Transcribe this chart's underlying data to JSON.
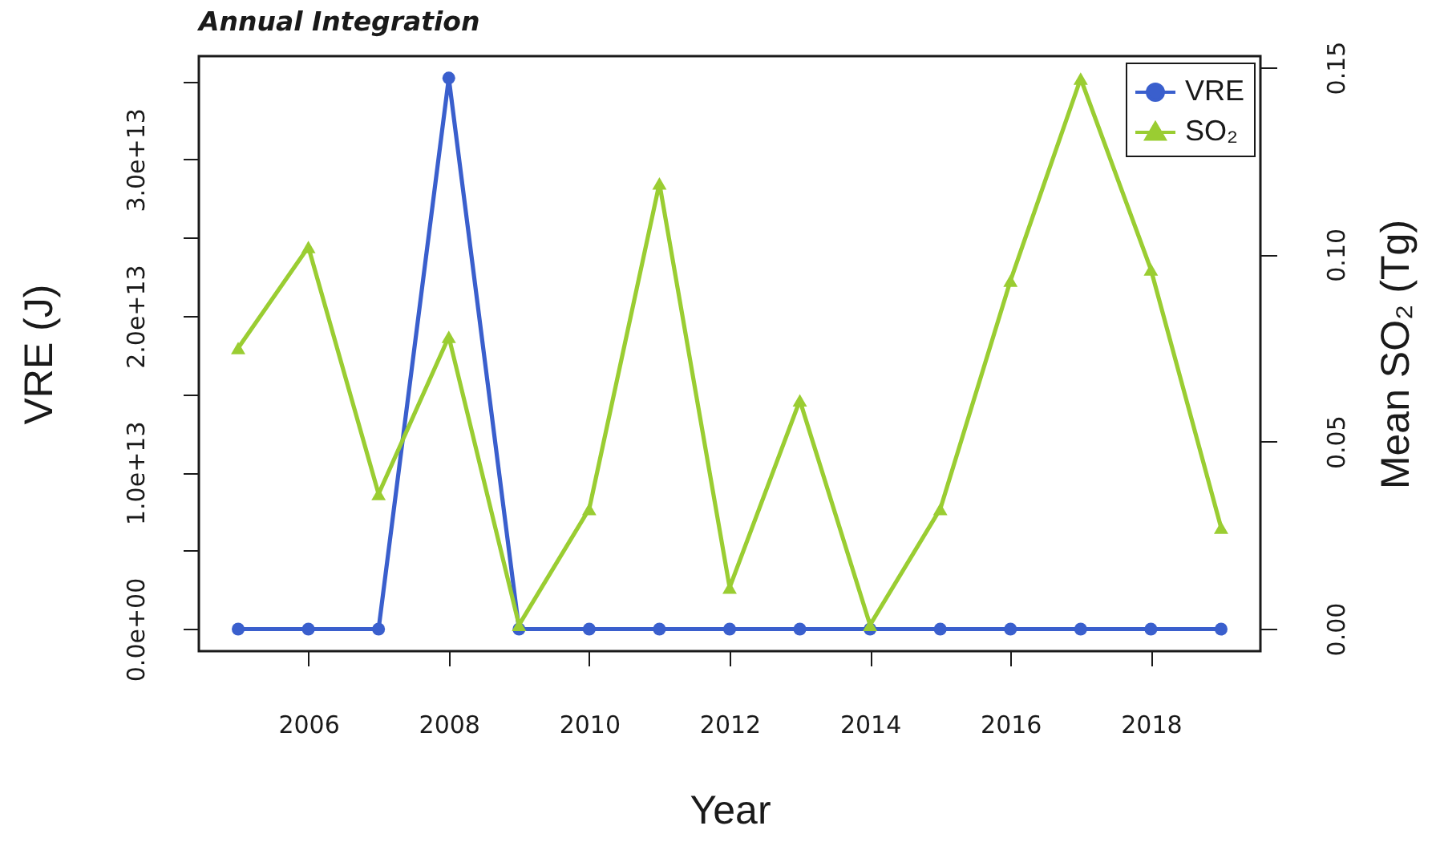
{
  "chart_data": {
    "type": "line",
    "title": "Annual Integration",
    "xlabel": "Year",
    "ylabel": "VRE (J)",
    "y2label": "Mean SO₂ (Tg)",
    "x": [
      2005,
      2006,
      2007,
      2008,
      2009,
      2010,
      2011,
      2012,
      2013,
      2014,
      2015,
      2016,
      2017,
      2018,
      2019
    ],
    "series": [
      {
        "name": "VRE",
        "color": "#3a5fcd",
        "marker": "circle",
        "values": [
          0,
          0,
          0,
          35200000000000.0,
          0,
          0,
          0,
          0,
          0,
          0,
          0,
          0,
          0,
          0,
          0
        ]
      },
      {
        "name": "SO₂",
        "color": "#9acd32",
        "marker": "triangle",
        "axis": "y2",
        "values": [
          0.075,
          0.102,
          0.036,
          0.078,
          0.001,
          0.032,
          0.119,
          0.011,
          0.061,
          0.001,
          0.032,
          0.093,
          0.147,
          0.096,
          0.027
        ]
      }
    ],
    "xlim": [
      2004.44,
      2019.56
    ],
    "xticks": [
      2006,
      2008,
      2010,
      2012,
      2014,
      2016,
      2018
    ],
    "ylim": [
      -1410000000000.0,
      36600000000000.0
    ],
    "yticks": [
      {
        "value": 0,
        "label": "0.0e+00"
      },
      {
        "value": 5000000000000.0,
        "label": null
      },
      {
        "value": 10000000000000.0,
        "label": "1.0e+13"
      },
      {
        "value": 15000000000000.0,
        "label": null
      },
      {
        "value": 20000000000000.0,
        "label": "2.0e+13"
      },
      {
        "value": 25000000000000.0,
        "label": null
      },
      {
        "value": 30000000000000.0,
        "label": "3.0e+13"
      },
      {
        "value": 35000000000000.0,
        "label": null
      }
    ],
    "y2lim": [
      -0.006,
      0.153
    ],
    "y2ticks": [
      {
        "value": 0,
        "label": "0.00"
      },
      {
        "value": 0.05,
        "label": "0.05"
      },
      {
        "value": 0.1,
        "label": "0.10"
      },
      {
        "value": 0.15,
        "label": "0.15"
      }
    ],
    "legend": "top right",
    "line_style": "solid"
  }
}
